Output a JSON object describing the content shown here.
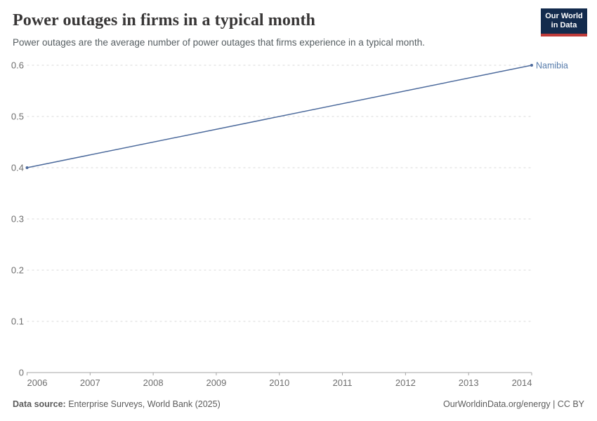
{
  "header": {
    "title": "Power outages in firms in a typical month",
    "subtitle": "Power outages are the average number of power outages that firms experience in a typical month."
  },
  "logo": {
    "line1": "Our World",
    "line2": "in Data",
    "bg_color": "#132b4d",
    "accent_color": "#bf3b39"
  },
  "chart_data": {
    "type": "line",
    "title": "Power outages in firms in a typical month",
    "series": [
      {
        "name": "Namibia",
        "x": [
          2006,
          2014
        ],
        "values": [
          0.4,
          0.6
        ],
        "color": "#4c6a9c",
        "endpoint_markers": true
      }
    ],
    "x_ticks": [
      2006,
      2007,
      2008,
      2009,
      2010,
      2011,
      2012,
      2013,
      2014
    ],
    "x_tick_labels": [
      "2006",
      "2007",
      "2008",
      "2009",
      "2010",
      "2011",
      "2012",
      "2013",
      "2014"
    ],
    "y_ticks": [
      0,
      0.1,
      0.2,
      0.3,
      0.4,
      0.5,
      0.6
    ],
    "y_tick_labels": [
      "0",
      "0.1",
      "0.2",
      "0.3",
      "0.4",
      "0.5",
      "0.6"
    ],
    "xlim": [
      2006,
      2014
    ],
    "ylim": [
      0,
      0.6
    ],
    "grid": "horizontal-dashed",
    "legend_position": "end-of-line-label",
    "xlabel": "",
    "ylabel": ""
  },
  "footer": {
    "source_label": "Data source:",
    "source_text": " Enterprise Surveys, World Bank (2025)",
    "right_text": "OurWorldinData.org/energy | CC BY"
  },
  "colors": {
    "line": "#4c6a9c",
    "entity_label": "#577cab",
    "grid": "#d9d9d9",
    "axis": "#a5a5a5",
    "tick_text": "#6e6e6e",
    "title_text": "#383636",
    "subtitle_text": "#555d61",
    "footer_text": "#5b5b5b"
  }
}
